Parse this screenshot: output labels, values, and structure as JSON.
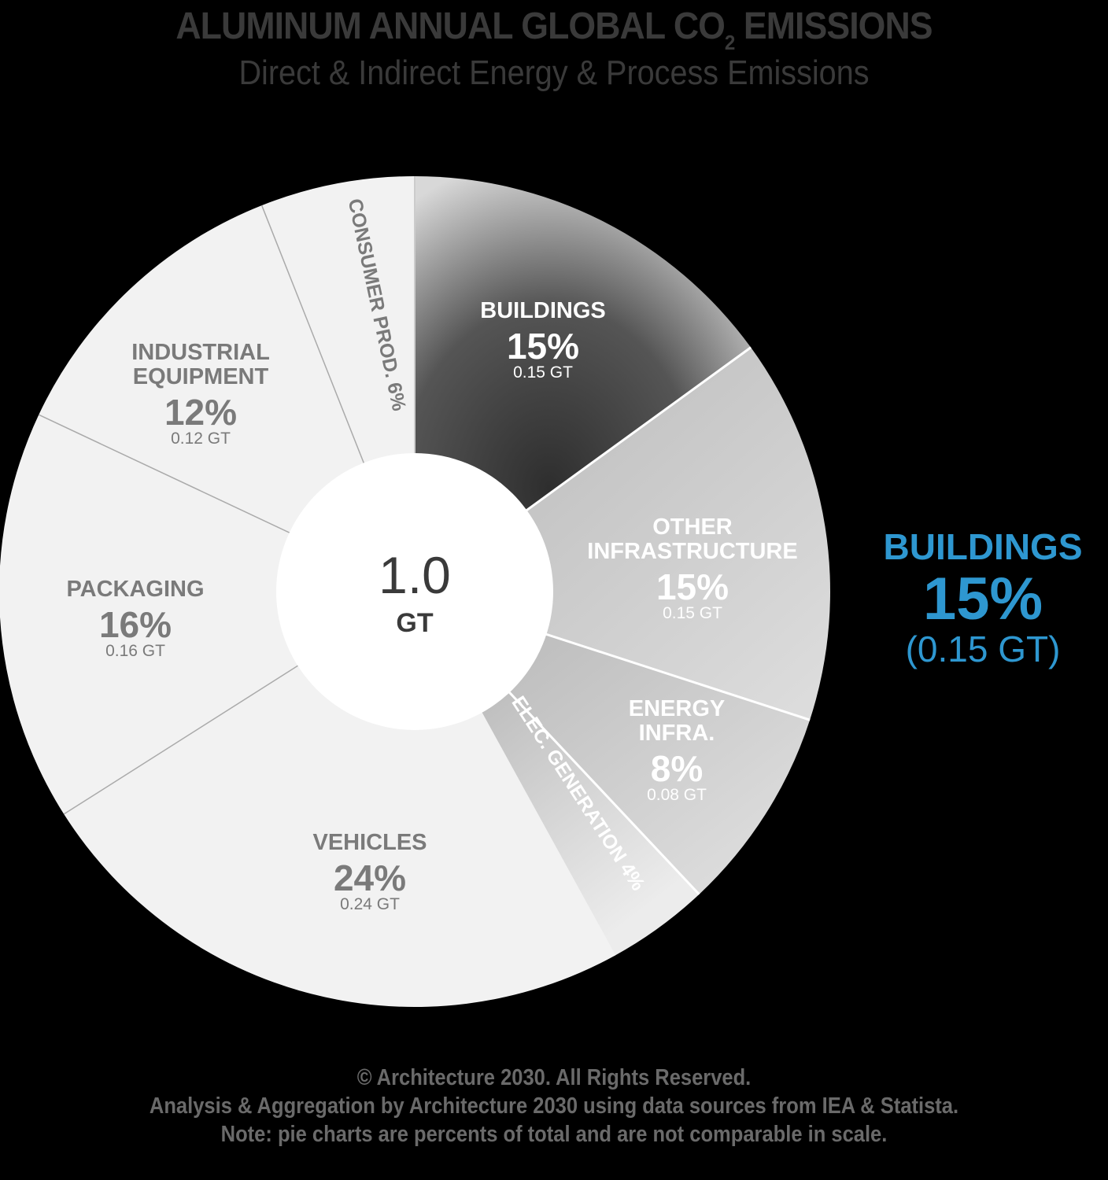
{
  "header": {
    "title_pre": "ALUMINUM ANNUAL GLOBAL CO",
    "title_sub": "2",
    "title_post": " EMISSIONS",
    "subtitle": "Direct & Indirect Energy & Process Emissions"
  },
  "center": {
    "value": "1.0",
    "unit": "GT"
  },
  "slices": {
    "buildings": {
      "name": "BUILDINGS",
      "pct": "15%",
      "gt": "0.15 GT"
    },
    "other_infra": {
      "name_line1": "OTHER",
      "name_line2": "INFRASTRUCTURE",
      "pct": "15%",
      "gt": "0.15 GT"
    },
    "energy_infra": {
      "name_line1": "ENERGY",
      "name_line2": "INFRA.",
      "pct": "8%",
      "gt": "0.08 GT"
    },
    "elec_gen": {
      "label": "ELEC. GENERATION 4%"
    },
    "vehicles": {
      "name": "VEHICLES",
      "pct": "24%",
      "gt": "0.24 GT"
    },
    "packaging": {
      "name": "PACKAGING",
      "pct": "16%",
      "gt": "0.16 GT"
    },
    "industrial": {
      "name_line1": "INDUSTRIAL",
      "name_line2": "EQUIPMENT",
      "pct": "12%",
      "gt": "0.12 GT"
    },
    "consumer": {
      "label": "CONSUMER PROD. 6%"
    }
  },
  "callout": {
    "name": "BUILDINGS",
    "pct": "15%",
    "gt": "(0.15 GT)",
    "color": "#2e97d0"
  },
  "footer": {
    "line1": "© Architecture 2030. All Rights Reserved.",
    "line2": "Analysis & Aggregation by Architecture 2030 using data sources from IEA & Statista.",
    "line3": "Note: pie charts are percents of total and are not comparable in scale."
  },
  "chart_data": {
    "type": "pie",
    "variant": "donut",
    "title": "ALUMINUM ANNUAL GLOBAL CO2 EMISSIONS",
    "subtitle": "Direct & Indirect Energy & Process Emissions",
    "total": "1.0 GT",
    "categories": [
      "Buildings",
      "Other Infrastructure",
      "Energy Infra.",
      "Elec. Generation",
      "Vehicles",
      "Packaging",
      "Industrial Equipment",
      "Consumer Prod."
    ],
    "values": [
      15,
      15,
      8,
      4,
      24,
      16,
      12,
      6
    ],
    "values_gt": [
      0.15,
      0.15,
      0.08,
      0.04,
      0.24,
      0.16,
      0.12,
      0.06
    ],
    "unit": "% of total",
    "highlight": {
      "category": "Buildings",
      "value": 15,
      "gt": 0.15
    },
    "start_angle": "12 o'clock, clockwise",
    "colors": [
      "#3c3c3c",
      "#c8c8c8",
      "#c2c2c2",
      "#b0b0b0",
      "#f2f2f2",
      "#f2f2f2",
      "#f2f2f2",
      "#f2f2f2"
    ]
  }
}
